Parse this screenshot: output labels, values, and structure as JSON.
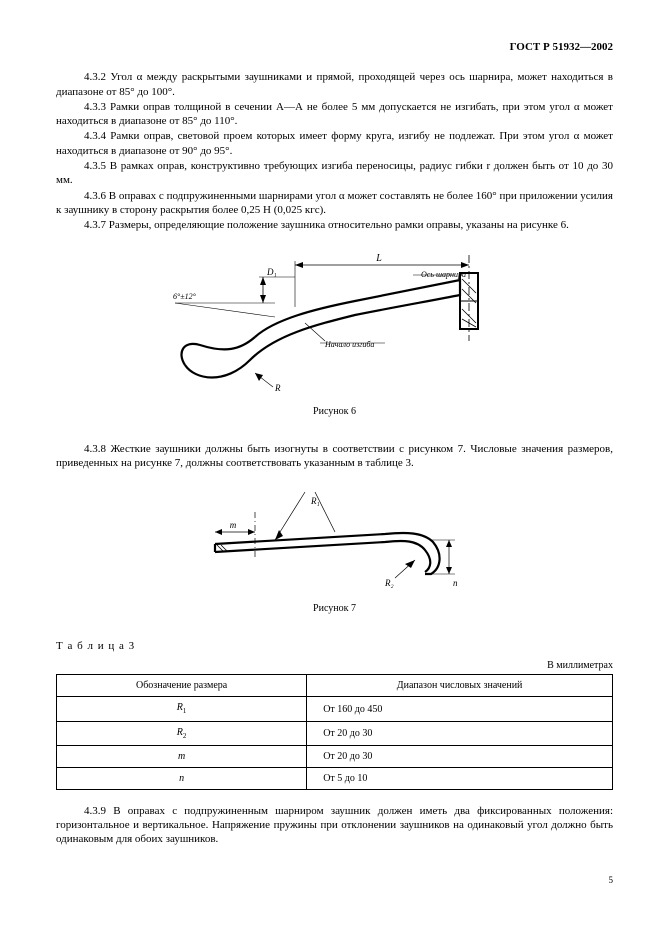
{
  "header": {
    "standard": "ГОСТ Р 51932—2002"
  },
  "paragraphs": {
    "p432": "4.3.2 Угол α между раскрытыми заушниками и прямой, проходящей через ось шарнира, может находиться в диапазоне от 85° до 100°.",
    "p433": "4.3.3 Рамки оправ толщиной в сечении А—А не более 5 мм допускается не изгибать, при этом угол α может находиться в диапазоне от 85° до 110°.",
    "p434": "4.3.4 Рамки оправ, световой проем которых имеет форму круга, изгибу не подлежат. При этом угол α может находиться в диапазоне от 90° до 95°.",
    "p435": "4.3.5 В рамках оправ, конструктивно требующих изгиба переносицы, радиус гибки r должен быть от 10 до 30 мм.",
    "p436": "4.3.6 В оправах с подпружиненными шарнирами угол α может составлять не более 160° при приложении усилия к заушнику в сторону раскрытия более 0,25 Н (0,025 кгс).",
    "p437": "4.3.7 Размеры, определяющие положение заушника относительно рамки оправы, указаны на рисунке 6.",
    "p438": "4.3.8 Жесткие заушники должны быть изогнуты в соответствии с рисунком 7. Числовые значения размеров, приведенных на рисунке 7, должны соответствовать указанным в таблице 3.",
    "p439": "4.3.9 В оправах с подпружиненным шарниром заушник должен иметь два фиксированных положения: горизонтальное и вертикальное. Напряжение пружины при отклонении заушников на одинаковый угол должно быть одинаковым для обоих заушников."
  },
  "figures": {
    "fig6_caption": "Рисунок 6",
    "fig7_caption": "Рисунок 7",
    "fig6_labels": {
      "axis": "Ось шарнира",
      "bend": "Начало изгиба",
      "L": "L",
      "D1": "D₁",
      "angle": "6°±12°",
      "R": "R"
    },
    "fig7_labels": {
      "R1": "R₁",
      "R2": "R₂",
      "m": "m",
      "n": "n"
    }
  },
  "table3": {
    "title": "Т а б л и ц а 3",
    "unit": "В миллиметрах",
    "head_a": "Обозначение размера",
    "head_b": "Диапазон числовых значений",
    "rows": [
      {
        "sym": "R",
        "sub": "1",
        "range": "От 160 до 450"
      },
      {
        "sym": "R",
        "sub": "2",
        "range": "От 20 до 30"
      },
      {
        "sym": "m",
        "sub": "",
        "range": "От 20 до 30"
      },
      {
        "sym": "n",
        "sub": "",
        "range": "От 5 до 10"
      }
    ]
  },
  "page_number": "5",
  "style": {
    "stroke": "#000000",
    "fill": "#ffffff",
    "hatch": "#000000"
  }
}
